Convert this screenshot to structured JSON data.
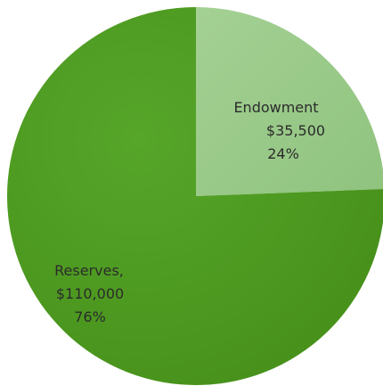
{
  "chart_data": {
    "type": "pie",
    "slices": [
      {
        "label": "Endowment",
        "value_text": "$35,500",
        "percent_text": "24%",
        "value": 35500,
        "percent": 24,
        "color": "#9ccc8c"
      },
      {
        "label": "Reserves,",
        "value_text": "$110,000",
        "percent_text": "76%",
        "value": 110000,
        "percent": 76,
        "color": "#4f9b20"
      }
    ]
  }
}
